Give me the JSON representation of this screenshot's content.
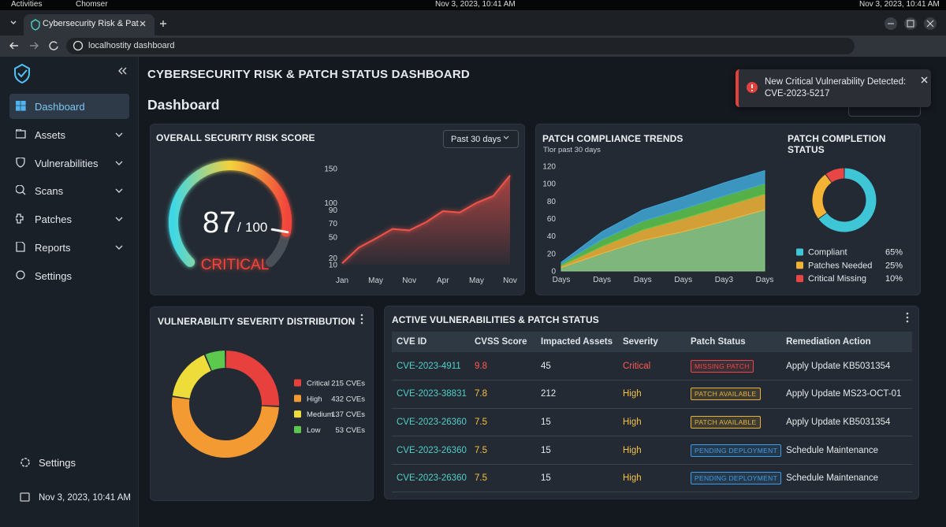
{
  "os_bar": {
    "activities": "Activities",
    "app": "Chomser",
    "clock": "Nov 3, 2023, 10:41 AM",
    "clock_right": "Nov 3, 2023, 10:41 AM"
  },
  "browser": {
    "tab": "Cybersecurity Risk & Pat",
    "url": "localhostity dashboard"
  },
  "sidebar": {
    "items": [
      "Dashboard",
      "Assets",
      "Vulnerabilities",
      "Scans",
      "Patches",
      "Reports",
      "Settings"
    ],
    "footer_settings": "Settings",
    "footer_date": "Nov 3, 2023, 10:41 AM"
  },
  "header": {
    "title": "CYBERSECURITY RISK & PATCH STATUS DASHBOARD",
    "page": "Dashboard"
  },
  "toast": {
    "text": "New Critical Vulnerability Detected: CVE-2023-5217"
  },
  "risk_panel": {
    "title": "OVERALL SECURITY RISK SCORE",
    "range": "Past 30 days"
  },
  "compliance_panel": {
    "title": "PATCH COMPLIANCE TRENDS",
    "subtitle": "Tlor past 30 days"
  },
  "chart_data": [
    {
      "type": "gauge",
      "value": 87,
      "max": 100,
      "separator": "/",
      "status": "CRITICAL",
      "color_stops": [
        "#3fd8e6",
        "#f3d23c",
        "#f2453a"
      ],
      "track_color": "#4a5057"
    },
    {
      "type": "line",
      "categories": [
        "Jan",
        null,
        "May",
        null,
        "Nov",
        null,
        "Apr",
        null,
        "May",
        null,
        "Nov"
      ],
      "values": [
        12,
        35,
        48,
        62,
        60,
        72,
        88,
        86,
        100,
        110,
        140
      ],
      "color": "#f0524a",
      "ylim": [
        10,
        150
      ],
      "yticks": [
        10,
        20,
        50,
        70,
        90,
        100,
        150
      ]
    },
    {
      "type": "area",
      "categories": [
        "Days",
        "Days",
        "Days",
        "Days",
        "Day3",
        "Days"
      ],
      "stacked": true,
      "ylim": [
        0,
        120
      ],
      "yticks": [
        0,
        20,
        40,
        60,
        80,
        100,
        120
      ],
      "series": [
        {
          "color": "#8fcf8a",
          "values": [
            4,
            20,
            35,
            45,
            57,
            70
          ]
        },
        {
          "color": "#f2b53a",
          "values": [
            2,
            8,
            12,
            15,
            17,
            18
          ]
        },
        {
          "color": "#5ec84e",
          "values": [
            2,
            8,
            10,
            11,
            12,
            12
          ]
        },
        {
          "color": "#3fa8d8",
          "values": [
            2,
            9,
            13,
            14,
            15,
            15
          ]
        }
      ]
    },
    {
      "type": "donut",
      "title": "PATCH COMPLETION STATUS",
      "categories": [
        "Compliant",
        "Patches Needed",
        "Critical Missing"
      ],
      "values": [
        65,
        25,
        10
      ],
      "value_labels": [
        "65%",
        "25%",
        "10%"
      ],
      "colors": [
        "#3ec6d6",
        "#f5b335",
        "#e84545"
      ]
    },
    {
      "type": "donut",
      "title": "VULNERABILITY SEVERITY DISTRIBUTION",
      "categories": [
        "Critical",
        "High",
        "Medium",
        "Low"
      ],
      "values": [
        215,
        432,
        137,
        53
      ],
      "value_labels": [
        "215 CVEs",
        "432 CVEs",
        "137 CVEs",
        "53 CVEs"
      ],
      "colors": [
        "#e8403c",
        "#f39a32",
        "#eedc3a",
        "#5cc94e"
      ]
    }
  ],
  "table": {
    "title": "ACTIVE VULNERABILITIES & PATCH STATUS",
    "headers": [
      "CVE ID",
      "CVSS Score",
      "Impacted Assets",
      "Severity",
      "Patch Status",
      "Remediation Action"
    ],
    "rows": [
      {
        "cells": [
          "CVE-2023-4911",
          "9.8",
          "45",
          "Critical",
          "MISSING PATCH",
          "Apply Update KB5031354"
        ],
        "score_color": "#ff5a52",
        "severity_color": "#ff5a52",
        "badge_color": "#e8484a"
      },
      {
        "cells": [
          "CVE-2023-38831",
          "7.8",
          "212",
          "High",
          "PATCH AVAILABLE",
          "Apply Update MS23-OCT-01"
        ],
        "score_color": "#f5c242",
        "severity_color": "#f5c242",
        "badge_color": "#e8b23a"
      },
      {
        "cells": [
          "CVE-2023-26360",
          "7.5",
          "15",
          "High",
          "PATCH AVAILABLE",
          "Apply Update KB5031354"
        ],
        "score_color": "#f5c242",
        "severity_color": "#f5c242",
        "badge_color": "#e8b23a"
      },
      {
        "cells": [
          "CVE-2023-26360",
          "7.5",
          "15",
          "High",
          "PENDING DEPLOYMENT",
          "Schedule Maintenance"
        ],
        "score_color": "#f5c242",
        "severity_color": "#f5c242",
        "badge_color": "#3f9be8"
      },
      {
        "cells": [
          "CVE-2023-26360",
          "7.5",
          "15",
          "High",
          "PENDING DEPLOYMENT",
          "Schedule Maintenance"
        ],
        "score_color": "#f5c242",
        "severity_color": "#f5c242",
        "badge_color": "#3f9be8"
      }
    ]
  }
}
